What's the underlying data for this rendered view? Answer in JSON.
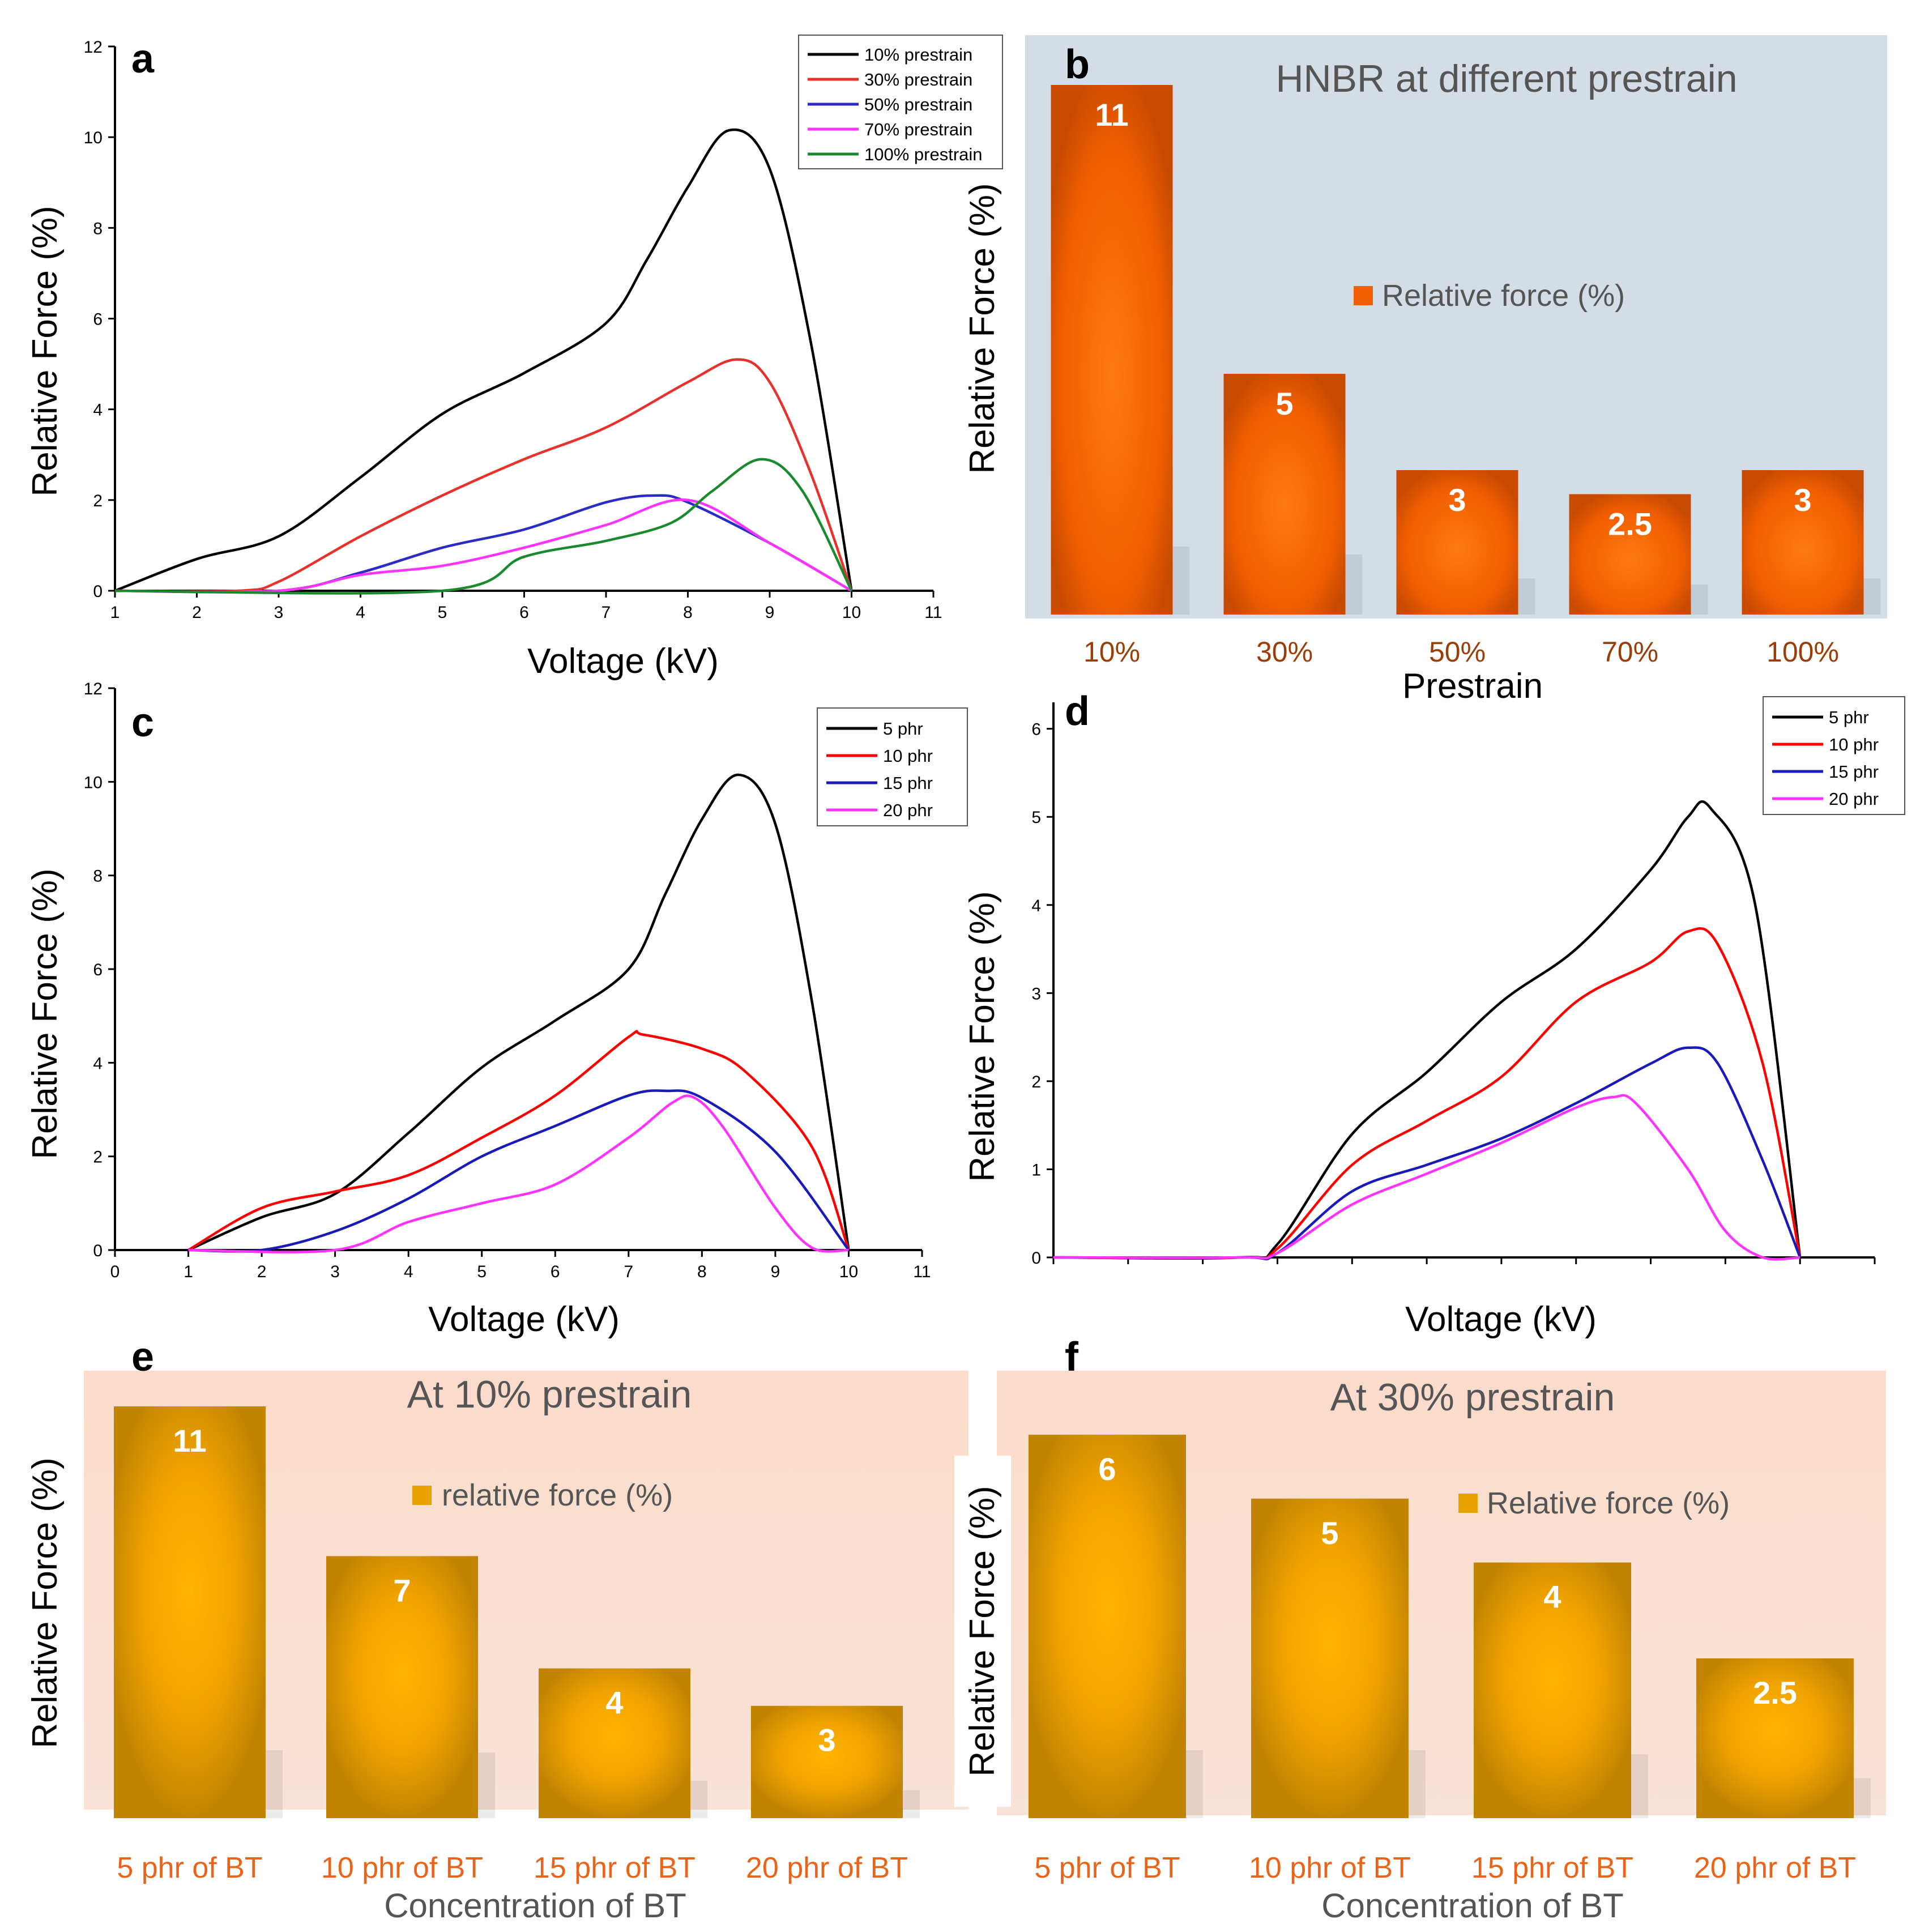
{
  "chart_data": [
    {
      "panel": "a",
      "type": "line",
      "xlabel": "Voltage (kV)",
      "ylabel": "Relative Force (%)",
      "xlim": [
        1,
        11
      ],
      "ylim": [
        0,
        12
      ],
      "xticks": [
        1,
        2,
        3,
        4,
        5,
        6,
        7,
        8,
        9,
        10,
        11
      ],
      "yticks": [
        0,
        2,
        4,
        6,
        8,
        10,
        12
      ],
      "legend_position": "top-right",
      "series": [
        {
          "name": "10% prestrain",
          "color": "#000000",
          "points": [
            [
              1,
              0
            ],
            [
              2,
              0.7
            ],
            [
              3,
              1.2
            ],
            [
              4,
              2.5
            ],
            [
              5,
              3.9
            ],
            [
              6,
              4.8
            ],
            [
              7,
              5.9
            ],
            [
              7.5,
              7.3
            ],
            [
              8,
              8.9
            ],
            [
              8.5,
              10.15
            ],
            [
              9,
              9.3
            ],
            [
              9.5,
              5.5
            ],
            [
              10,
              0
            ]
          ]
        },
        {
          "name": "30% prestrain",
          "color": "#e8312a",
          "points": [
            [
              1,
              0
            ],
            [
              2.5,
              0
            ],
            [
              3,
              0.2
            ],
            [
              4,
              1.2
            ],
            [
              5,
              2.1
            ],
            [
              6,
              2.9
            ],
            [
              7,
              3.6
            ],
            [
              8,
              4.6
            ],
            [
              8.6,
              5.1
            ],
            [
              9,
              4.6
            ],
            [
              9.5,
              2.6
            ],
            [
              10,
              0
            ]
          ]
        },
        {
          "name": "50% prestrain",
          "color": "#2b2bc8",
          "points": [
            [
              1,
              0
            ],
            [
              3,
              0
            ],
            [
              4,
              0.4
            ],
            [
              5,
              0.95
            ],
            [
              6,
              1.35
            ],
            [
              7,
              1.95
            ],
            [
              7.6,
              2.1
            ],
            [
              8,
              1.95
            ],
            [
              9,
              1.05
            ],
            [
              10,
              0
            ]
          ]
        },
        {
          "name": "70% prestrain",
          "color": "#ff33ff",
          "points": [
            [
              1,
              0
            ],
            [
              3,
              0
            ],
            [
              4,
              0.35
            ],
            [
              5,
              0.55
            ],
            [
              6,
              0.95
            ],
            [
              7,
              1.45
            ],
            [
              8,
              2.0
            ],
            [
              9,
              1.05
            ],
            [
              10,
              0
            ]
          ]
        },
        {
          "name": "100% prestrain",
          "color": "#1a8a2e",
          "points": [
            [
              1,
              0
            ],
            [
              5,
              0
            ],
            [
              6,
              0.75
            ],
            [
              7,
              1.1
            ],
            [
              7.8,
              1.5
            ],
            [
              8.3,
              2.2
            ],
            [
              8.9,
              2.9
            ],
            [
              9.4,
              2.2
            ],
            [
              10,
              0
            ]
          ]
        }
      ]
    },
    {
      "panel": "b",
      "type": "bar",
      "title": "HNBR at different prestrain",
      "xlabel": "Prestrain",
      "ylabel": "Relative Force (%)",
      "legend": "Relative force (%)",
      "categories": [
        "10%",
        "30%",
        "50%",
        "70%",
        "100%"
      ],
      "values": [
        11,
        5,
        3,
        2.5,
        3
      ],
      "value_labels": [
        "11",
        "5",
        "3",
        "2.5",
        "3"
      ],
      "bar_color": "#ff6a00",
      "background": "#d4dde6"
    },
    {
      "panel": "c",
      "type": "line",
      "xlabel": "Voltage (kV)",
      "ylabel": "Relative Force (%)",
      "xlim": [
        0,
        11
      ],
      "ylim": [
        0,
        12
      ],
      "xticks": [
        0,
        1,
        2,
        3,
        4,
        5,
        6,
        7,
        8,
        9,
        10,
        11
      ],
      "yticks": [
        0,
        2,
        4,
        6,
        8,
        10,
        12
      ],
      "legend_position": "top-right",
      "series": [
        {
          "name": "5 phr",
          "color": "#000000",
          "points": [
            [
              1,
              0
            ],
            [
              2,
              0.7
            ],
            [
              3,
              1.2
            ],
            [
              4,
              2.5
            ],
            [
              5,
              3.9
            ],
            [
              6,
              4.9
            ],
            [
              7,
              6.0
            ],
            [
              7.5,
              7.6
            ],
            [
              8,
              9.2
            ],
            [
              8.5,
              10.15
            ],
            [
              9,
              9.1
            ],
            [
              9.5,
              5.3
            ],
            [
              10,
              0
            ]
          ]
        },
        {
          "name": "10 phr",
          "color": "#ff0000",
          "points": [
            [
              1,
              0
            ],
            [
              2,
              0.9
            ],
            [
              3,
              1.25
            ],
            [
              4,
              1.6
            ],
            [
              5,
              2.4
            ],
            [
              6,
              3.3
            ],
            [
              7,
              4.55
            ],
            [
              7.2,
              4.6
            ],
            [
              8,
              4.3
            ],
            [
              8.6,
              3.8
            ],
            [
              9.5,
              2.2
            ],
            [
              10,
              0
            ]
          ]
        },
        {
          "name": "15 phr",
          "color": "#1a1ab8",
          "points": [
            [
              1,
              0
            ],
            [
              2,
              0
            ],
            [
              3,
              0.4
            ],
            [
              4,
              1.1
            ],
            [
              5,
              2.0
            ],
            [
              6,
              2.65
            ],
            [
              7,
              3.3
            ],
            [
              7.5,
              3.4
            ],
            [
              8,
              3.25
            ],
            [
              9,
              2.1
            ],
            [
              10,
              0
            ]
          ]
        },
        {
          "name": "20 phr",
          "color": "#ff33ff",
          "points": [
            [
              1,
              0
            ],
            [
              3,
              0
            ],
            [
              4,
              0.6
            ],
            [
              5,
              1.0
            ],
            [
              6,
              1.4
            ],
            [
              7,
              2.4
            ],
            [
              7.6,
              3.15
            ],
            [
              7.9,
              3.25
            ],
            [
              8.3,
              2.6
            ],
            [
              9,
              0.9
            ],
            [
              9.5,
              0.05
            ],
            [
              10,
              0
            ]
          ]
        }
      ]
    },
    {
      "panel": "d",
      "type": "line",
      "xlabel": "Voltage (kV)",
      "ylabel": "Relative Force (%)",
      "xlim": [
        0,
        11
      ],
      "ylim": [
        0,
        6.3
      ],
      "yticks": [
        0,
        1,
        2,
        3,
        4,
        5,
        6
      ],
      "legend_position": "top-right",
      "series": [
        {
          "name": "5 phr",
          "color": "#000000",
          "points": [
            [
              0,
              0
            ],
            [
              2.5,
              0
            ],
            [
              3,
              0.15
            ],
            [
              4,
              1.4
            ],
            [
              5,
              2.1
            ],
            [
              6,
              2.9
            ],
            [
              7,
              3.5
            ],
            [
              8,
              4.4
            ],
            [
              8.5,
              5.0
            ],
            [
              8.8,
              5.1
            ],
            [
              9.4,
              4.0
            ],
            [
              10,
              0
            ]
          ]
        },
        {
          "name": "10 phr",
          "color": "#ff0000",
          "points": [
            [
              0,
              0
            ],
            [
              2.5,
              0
            ],
            [
              3,
              0.1
            ],
            [
              4,
              1.05
            ],
            [
              5,
              1.55
            ],
            [
              6,
              2.05
            ],
            [
              7,
              2.9
            ],
            [
              8,
              3.35
            ],
            [
              8.5,
              3.7
            ],
            [
              8.9,
              3.55
            ],
            [
              9.5,
              2.2
            ],
            [
              10,
              0
            ]
          ]
        },
        {
          "name": "15 phr",
          "color": "#1a1ab8",
          "points": [
            [
              0,
              0
            ],
            [
              2.5,
              0
            ],
            [
              3,
              0.05
            ],
            [
              4,
              0.75
            ],
            [
              5,
              1.05
            ],
            [
              6,
              1.35
            ],
            [
              7,
              1.75
            ],
            [
              8,
              2.2
            ],
            [
              8.5,
              2.38
            ],
            [
              8.9,
              2.2
            ],
            [
              9.5,
              1.1
            ],
            [
              10,
              0
            ]
          ]
        },
        {
          "name": "20 phr",
          "color": "#ff33ff",
          "points": [
            [
              0,
              0
            ],
            [
              2.5,
              0
            ],
            [
              3,
              0.05
            ],
            [
              4,
              0.6
            ],
            [
              5,
              0.95
            ],
            [
              6,
              1.3
            ],
            [
              7,
              1.7
            ],
            [
              7.5,
              1.82
            ],
            [
              7.8,
              1.75
            ],
            [
              8.5,
              1.0
            ],
            [
              9,
              0.3
            ],
            [
              9.5,
              0.0
            ],
            [
              10,
              0
            ]
          ]
        }
      ]
    },
    {
      "panel": "e",
      "type": "bar",
      "title": "At 10% prestrain",
      "xlabel": "Concentration of BT",
      "ylabel": "Relative Force (%)",
      "legend": "relative force (%)",
      "categories": [
        "5 phr of BT",
        "10 phr of BT",
        "15 phr of BT",
        "20 phr of BT"
      ],
      "values": [
        11,
        7,
        4,
        3
      ],
      "value_labels": [
        "11",
        "7",
        "4",
        "3"
      ],
      "bar_color": "#e8a800",
      "background": "#fbe0d3"
    },
    {
      "panel": "f",
      "type": "bar",
      "title": "At 30% prestrain",
      "xlabel": "Concentration of BT",
      "ylabel": "Relative Force (%)",
      "legend": "Relative force (%)",
      "categories": [
        "5 phr of BT",
        "10 phr of BT",
        "15 phr of BT",
        "20 phr of BT"
      ],
      "values": [
        6,
        5,
        4,
        2.5
      ],
      "value_labels": [
        "6",
        "5",
        "4",
        "2.5"
      ],
      "bar_color": "#e8a800",
      "background": "#fbe0d3"
    }
  ]
}
